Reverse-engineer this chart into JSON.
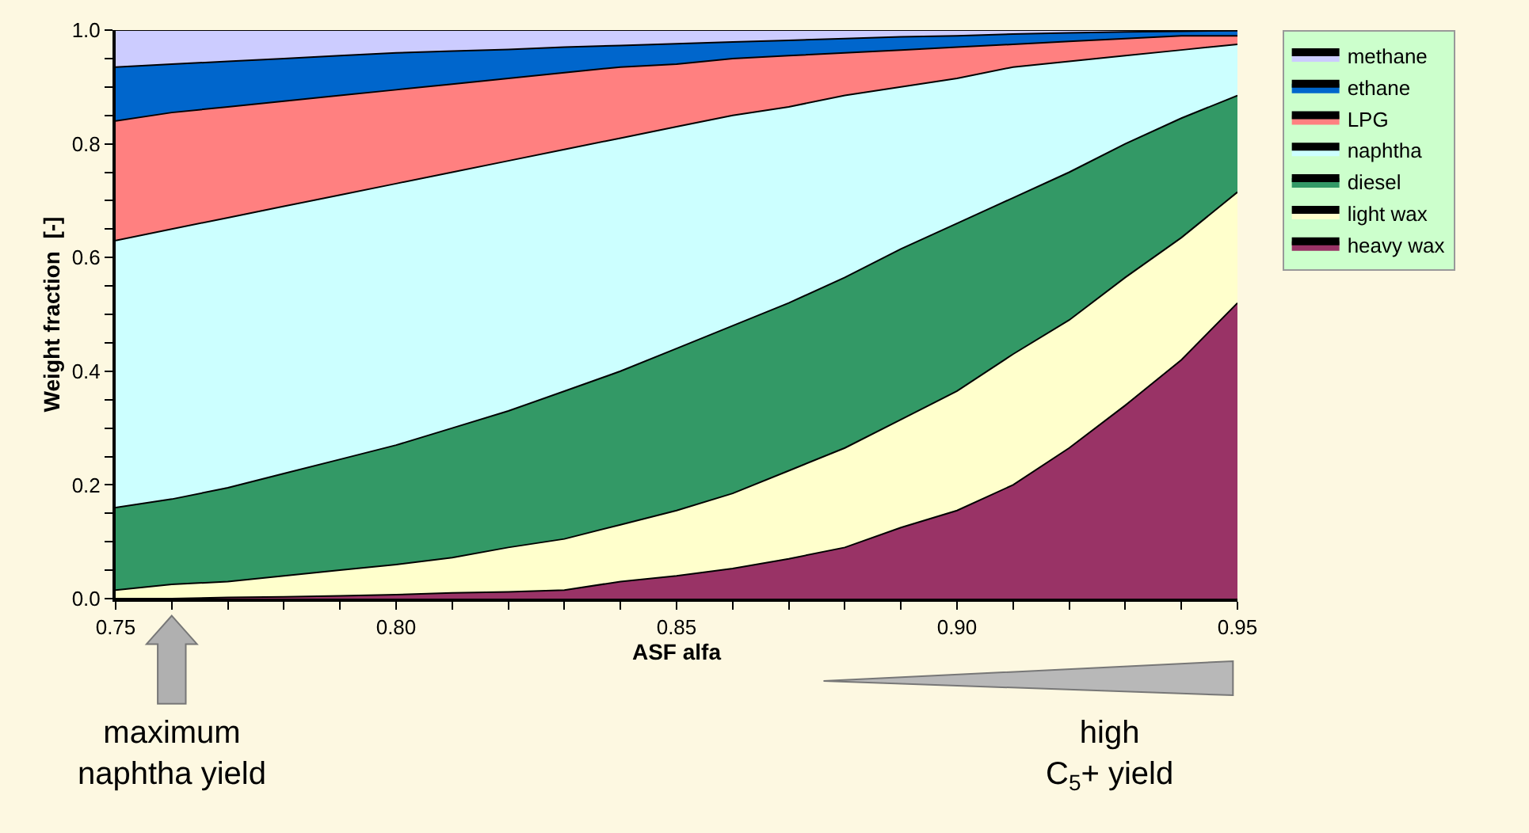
{
  "chart_data": {
    "type": "area",
    "stacked": true,
    "xlabel": "ASF alfa",
    "ylabel": "Weight fraction  [-]",
    "x": [
      0.75,
      0.76,
      0.77,
      0.78,
      0.79,
      0.8,
      0.81,
      0.82,
      0.83,
      0.84,
      0.85,
      0.86,
      0.87,
      0.88,
      0.89,
      0.9,
      0.91,
      0.92,
      0.93,
      0.94,
      0.95
    ],
    "xlim": [
      0.75,
      0.95
    ],
    "ylim": [
      0,
      1
    ],
    "xticks": [
      {
        "value": 0.75,
        "label": "0.75"
      },
      {
        "value": 0.76,
        "label": null
      },
      {
        "value": 0.77,
        "label": null
      },
      {
        "value": 0.78,
        "label": null
      },
      {
        "value": 0.79,
        "label": null
      },
      {
        "value": 0.8,
        "label": "0.80"
      },
      {
        "value": 0.81,
        "label": null
      },
      {
        "value": 0.82,
        "label": null
      },
      {
        "value": 0.83,
        "label": null
      },
      {
        "value": 0.84,
        "label": null
      },
      {
        "value": 0.85,
        "label": "0.85"
      },
      {
        "value": 0.86,
        "label": null
      },
      {
        "value": 0.87,
        "label": null
      },
      {
        "value": 0.88,
        "label": null
      },
      {
        "value": 0.89,
        "label": null
      },
      {
        "value": 0.9,
        "label": "0.90"
      },
      {
        "value": 0.91,
        "label": null
      },
      {
        "value": 0.92,
        "label": null
      },
      {
        "value": 0.93,
        "label": null
      },
      {
        "value": 0.94,
        "label": null
      },
      {
        "value": 0.95,
        "label": "0.95"
      }
    ],
    "yticks": [
      {
        "value": 0,
        "label": "0.0"
      },
      {
        "value": 0.05,
        "label": null
      },
      {
        "value": 0.1,
        "label": null
      },
      {
        "value": 0.15,
        "label": null
      },
      {
        "value": 0.2,
        "label": "0.2"
      },
      {
        "value": 0.25,
        "label": null
      },
      {
        "value": 0.3,
        "label": null
      },
      {
        "value": 0.35,
        "label": null
      },
      {
        "value": 0.4,
        "label": "0.4"
      },
      {
        "value": 0.45,
        "label": null
      },
      {
        "value": 0.5,
        "label": null
      },
      {
        "value": 0.55,
        "label": null
      },
      {
        "value": 0.6,
        "label": "0.6"
      },
      {
        "value": 0.65,
        "label": null
      },
      {
        "value": 0.7,
        "label": null
      },
      {
        "value": 0.75,
        "label": null
      },
      {
        "value": 0.8,
        "label": "0.8"
      },
      {
        "value": 0.85,
        "label": null
      },
      {
        "value": 0.9,
        "label": null
      },
      {
        "value": 0.95,
        "label": null
      },
      {
        "value": 1,
        "label": "1.0"
      }
    ],
    "legend": "top right",
    "series": [
      {
        "name": "heavy wax",
        "color": "#993366",
        "values": [
          0,
          0,
          0.002,
          0.003,
          0.005,
          0.007,
          0.01,
          0.012,
          0.015,
          0.03,
          0.04,
          0.053,
          0.07,
          0.09,
          0.125,
          0.155,
          0.2,
          0.265,
          0.34,
          0.42,
          0.52
        ]
      },
      {
        "name": "light wax",
        "color": "#ffffcc",
        "values": [
          0.015,
          0.025,
          0.028,
          0.037,
          0.045,
          0.053,
          0.062,
          0.078,
          0.09,
          0.1,
          0.115,
          0.132,
          0.155,
          0.175,
          0.19,
          0.21,
          0.23,
          0.225,
          0.225,
          0.215,
          0.195
        ]
      },
      {
        "name": "diesel",
        "color": "#339966",
        "values": [
          0.145,
          0.15,
          0.165,
          0.18,
          0.195,
          0.21,
          0.228,
          0.24,
          0.26,
          0.27,
          0.285,
          0.295,
          0.295,
          0.3,
          0.3,
          0.295,
          0.275,
          0.26,
          0.235,
          0.21,
          0.17
        ]
      },
      {
        "name": "naphtha",
        "color": "#ccffff",
        "values": [
          0.47,
          0.475,
          0.475,
          0.47,
          0.465,
          0.46,
          0.45,
          0.44,
          0.425,
          0.41,
          0.39,
          0.37,
          0.345,
          0.32,
          0.285,
          0.255,
          0.23,
          0.195,
          0.155,
          0.12,
          0.09
        ]
      },
      {
        "name": "LPG",
        "color": "#ff8080",
        "values": [
          0.21,
          0.205,
          0.195,
          0.185,
          0.175,
          0.165,
          0.155,
          0.145,
          0.135,
          0.125,
          0.11,
          0.1,
          0.09,
          0.075,
          0.065,
          0.055,
          0.04,
          0.035,
          0.03,
          0.025,
          0.015
        ]
      },
      {
        "name": "ethane",
        "color": "#0066cc",
        "values": [
          0.095,
          0.085,
          0.08,
          0.075,
          0.07,
          0.065,
          0.058,
          0.051,
          0.045,
          0.038,
          0.036,
          0.029,
          0.027,
          0.025,
          0.023,
          0.02,
          0.018,
          0.015,
          0.012,
          0.008,
          0.009
        ]
      },
      {
        "name": "methane",
        "color": "#ccccff",
        "values": [
          0.065,
          0.06,
          0.055,
          0.05,
          0.045,
          0.04,
          0.037,
          0.034,
          0.03,
          0.027,
          0.024,
          0.021,
          0.018,
          0.015,
          0.012,
          0.01,
          0.007,
          0.005,
          0.003,
          0.002,
          0.001
        ]
      }
    ],
    "annotations": [
      "maximum\nnaphtha yield",
      "high\nC$_{5}$+ yield"
    ]
  }
}
